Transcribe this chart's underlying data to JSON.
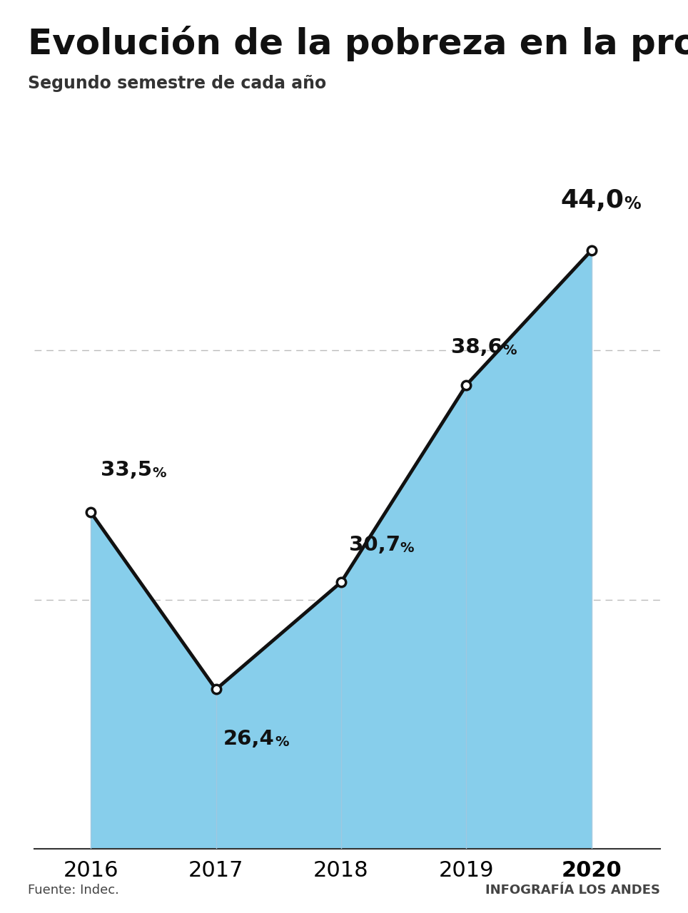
{
  "title": "Evolución de la pobreza en la provincia",
  "subtitle": "Segundo semestre de cada año",
  "years": [
    2016,
    2017,
    2018,
    2019,
    2020
  ],
  "values": [
    33.5,
    26.4,
    30.7,
    38.6,
    44.0
  ],
  "area_color": "#87CEEB",
  "line_color": "#111111",
  "marker_color": "#ffffff",
  "marker_edge_color": "#111111",
  "background_color": "#ffffff",
  "grid_color": "#bbbbbb",
  "footer_left": "Fuente: Indec.",
  "footer_right": "INFOGRAFÍA LOS ANDES",
  "ymin": 20,
  "ymax": 50,
  "title_fontsize": 36,
  "subtitle_fontsize": 17,
  "axis_fontsize": 22,
  "footer_fontsize": 13,
  "label_configs": [
    {
      "xt": 2016.08,
      "yt": 34.8,
      "main": "33,5",
      "pct": "%",
      "fs_main": 21,
      "fs_pct": 14,
      "ha": "left"
    },
    {
      "xt": 2017.06,
      "yt": 24.0,
      "main": "26,4",
      "pct": "%",
      "fs_main": 21,
      "fs_pct": 14,
      "ha": "left"
    },
    {
      "xt": 2018.06,
      "yt": 31.8,
      "main": "30,7",
      "pct": "%",
      "fs_main": 21,
      "fs_pct": 14,
      "ha": "left"
    },
    {
      "xt": 2018.88,
      "yt": 39.7,
      "main": "38,6",
      "pct": "%",
      "fs_main": 21,
      "fs_pct": 14,
      "ha": "left"
    },
    {
      "xt": 2019.75,
      "yt": 45.5,
      "main": "44,0",
      "pct": "%",
      "fs_main": 26,
      "fs_pct": 17,
      "ha": "left"
    }
  ]
}
